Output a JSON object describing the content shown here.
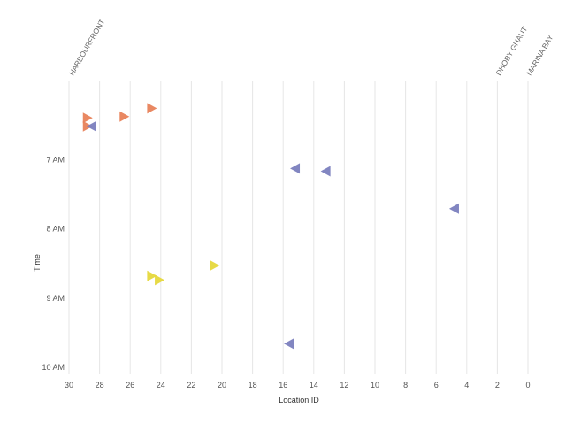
{
  "chart_data": {
    "type": "scatter",
    "xlabel": "Location ID",
    "ylabel": "Time",
    "xlim": [
      30,
      0
    ],
    "x_ticks": [
      30,
      28,
      26,
      24,
      22,
      20,
      18,
      16,
      14,
      12,
      10,
      8,
      6,
      4,
      2,
      0
    ],
    "y_ticks": [
      {
        "value": 7,
        "label": "7 AM"
      },
      {
        "value": 8,
        "label": "8 AM"
      },
      {
        "value": 9,
        "label": "9 AM"
      },
      {
        "value": 10,
        "label": "10 AM"
      }
    ],
    "ylim": [
      6.0,
      10.05
    ],
    "grid": "vertical",
    "stations": [
      {
        "name": "HARBOURFRONT",
        "location": 29.9
      },
      {
        "name": "DHOBY GHAUT",
        "location": 2.0
      },
      {
        "name": "MARINA BAY",
        "location": 0.0
      }
    ],
    "series": [
      {
        "color": "#e8825a",
        "marker": "triangle-right",
        "points": [
          {
            "x": 28.8,
            "y": 6.4
          },
          {
            "x": 28.8,
            "y": 6.52
          },
          {
            "x": 26.4,
            "y": 6.38
          },
          {
            "x": 24.6,
            "y": 6.26
          }
        ]
      },
      {
        "color": "#7b7fbe",
        "marker": "triangle-left",
        "points": [
          {
            "x": 28.5,
            "y": 6.52
          },
          {
            "x": 15.2,
            "y": 7.13
          },
          {
            "x": 13.2,
            "y": 7.17
          },
          {
            "x": 4.8,
            "y": 7.71
          },
          {
            "x": 15.6,
            "y": 9.66
          }
        ]
      },
      {
        "color": "#e6d83c",
        "marker": "triangle-right",
        "points": [
          {
            "x": 20.5,
            "y": 8.53
          },
          {
            "x": 24.6,
            "y": 8.68
          },
          {
            "x": 24.1,
            "y": 8.74
          }
        ]
      }
    ]
  }
}
